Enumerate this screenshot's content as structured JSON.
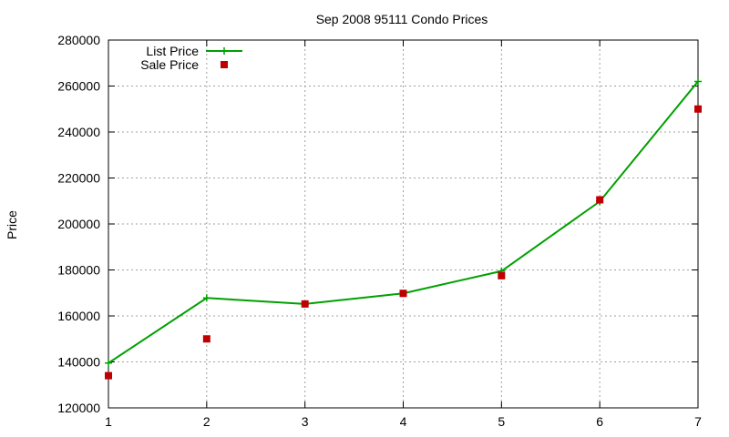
{
  "chart_data": {
    "type": "line",
    "title": "Sep 2008 95111 Condo Prices",
    "xlabel": "",
    "ylabel": "Price",
    "x": [
      1,
      2,
      3,
      4,
      5,
      6,
      7
    ],
    "xlim": [
      1,
      7
    ],
    "ylim": [
      120000,
      280000
    ],
    "xticks": [
      "1",
      "2",
      "3",
      "4",
      "5",
      "6",
      "7"
    ],
    "yticks": [
      "120000",
      "140000",
      "160000",
      "180000",
      "200000",
      "220000",
      "240000",
      "260000",
      "280000"
    ],
    "grid": true,
    "legend_position": "top-left",
    "series": [
      {
        "name": "List Price",
        "style": "lines+points",
        "color": "#00a000",
        "values": [
          139500,
          167800,
          165200,
          169800,
          179500,
          209800,
          262000
        ]
      },
      {
        "name": "Sale Price",
        "style": "points",
        "color": "#c00000",
        "values": [
          134000,
          150000,
          165200,
          169800,
          177500,
          210500,
          250000
        ]
      }
    ]
  }
}
